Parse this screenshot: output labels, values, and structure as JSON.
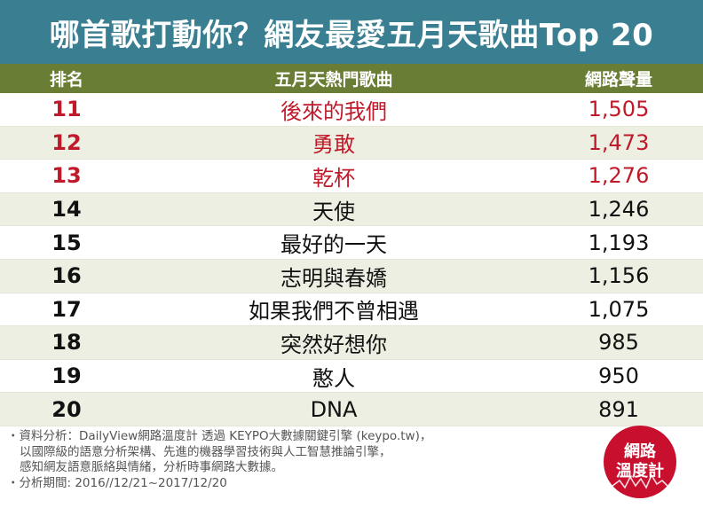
{
  "title": "哪首歌打動你？網友最愛五月天歌曲Top 20",
  "columns": {
    "rank": "排名",
    "song": "五月天熱門歌曲",
    "volume": "網路聲量"
  },
  "rows": [
    {
      "rank": "11",
      "song": "後來的我們",
      "volume": "1,505"
    },
    {
      "rank": "12",
      "song": "勇敢",
      "volume": "1,473"
    },
    {
      "rank": "13",
      "song": "乾杯",
      "volume": "1,276"
    },
    {
      "rank": "14",
      "song": "天使",
      "volume": "1,246"
    },
    {
      "rank": "15",
      "song": "最好的一天",
      "volume": "1,193"
    },
    {
      "rank": "16",
      "song": "志明與春嬌",
      "volume": "1,156"
    },
    {
      "rank": "17",
      "song": "如果我們不曾相遇",
      "volume": "1,075"
    },
    {
      "rank": "18",
      "song": "突然好想你",
      "volume": "985"
    },
    {
      "rank": "19",
      "song": "憨人",
      "volume": "950"
    },
    {
      "rank": "20",
      "song": "DNA",
      "volume": "891"
    }
  ],
  "highlight_color": "#c0192a",
  "footer": {
    "line1": "・資料分析：DailyView網路溫度計 透過 KEYPO大數據關鍵引擎 (keypo.tw)，",
    "line2": "以國際級的語意分析架構、先進的機器學習技術與人工智慧推論引擎，",
    "line3": "感知網友語意脈絡與情緒，分析時事網路大數據。",
    "line4": "・分析期間: 2016//12/21~2017/12/20"
  },
  "logo": {
    "line1": "網路",
    "line2": "溫度計",
    "color": "#c8102e"
  }
}
